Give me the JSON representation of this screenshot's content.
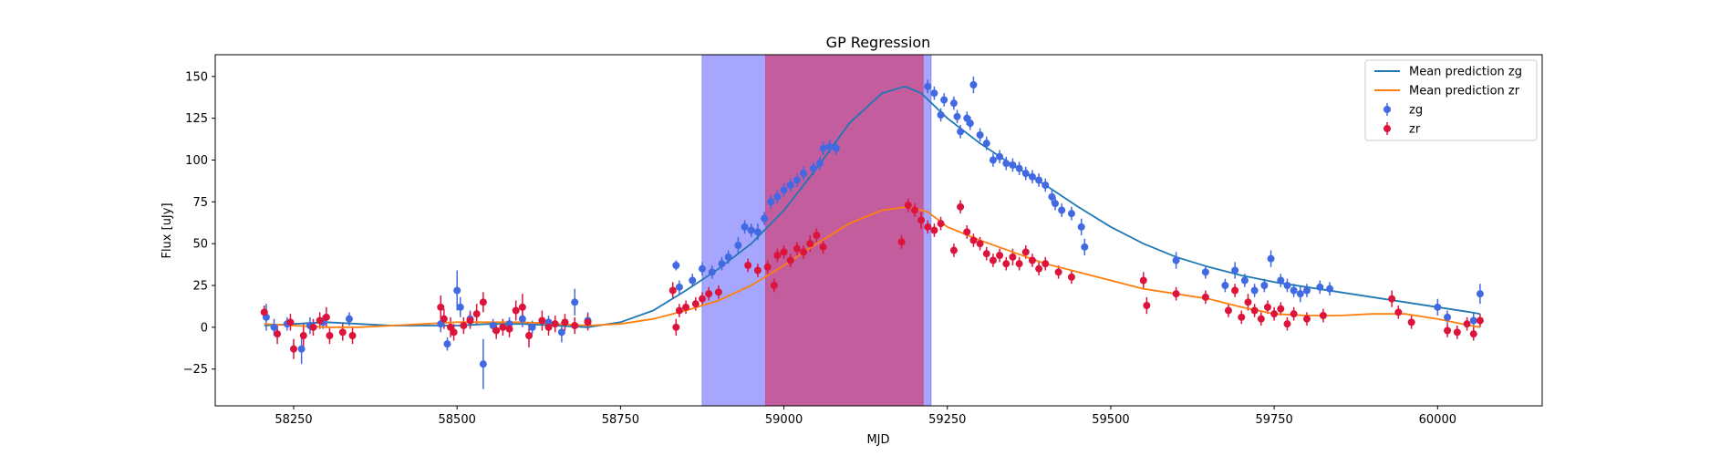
{
  "chart_data": {
    "type": "scatter",
    "title": "GP Regression",
    "xlabel": "MJD",
    "ylabel": "Flux [uJy]",
    "xlim": [
      58130,
      60160
    ],
    "ylim": [
      -47,
      163
    ],
    "xticks": [
      58250,
      58500,
      58750,
      59000,
      59250,
      59500,
      59750,
      60000
    ],
    "yticks": [
      -25,
      0,
      25,
      50,
      75,
      100,
      125,
      150
    ],
    "grid": false,
    "legend_position": "top-right",
    "shaded_regions": [
      {
        "x0": 58875,
        "x1": 59225,
        "color": "#8080ff",
        "opacity": 0.7
      },
      {
        "x0": 58972,
        "x1": 59213,
        "color": "#c8508c",
        "opacity": 0.85
      }
    ],
    "lines": [
      {
        "name": "Mean prediction zg",
        "color": "#1f77b4",
        "points": [
          [
            58205,
            1
          ],
          [
            58250,
            2
          ],
          [
            58300,
            3
          ],
          [
            58350,
            2
          ],
          [
            58400,
            1
          ],
          [
            58450,
            1
          ],
          [
            58500,
            1
          ],
          [
            58550,
            2
          ],
          [
            58600,
            2
          ],
          [
            58650,
            1
          ],
          [
            58700,
            0
          ],
          [
            58750,
            3
          ],
          [
            58800,
            10
          ],
          [
            58850,
            22
          ],
          [
            58900,
            35
          ],
          [
            58950,
            50
          ],
          [
            59000,
            70
          ],
          [
            59050,
            95
          ],
          [
            59100,
            122
          ],
          [
            59150,
            140
          ],
          [
            59185,
            144
          ],
          [
            59210,
            140
          ],
          [
            59250,
            125
          ],
          [
            59300,
            110
          ],
          [
            59350,
            97
          ],
          [
            59400,
            85
          ],
          [
            59450,
            72
          ],
          [
            59500,
            60
          ],
          [
            59550,
            50
          ],
          [
            59600,
            42
          ],
          [
            59650,
            36
          ],
          [
            59700,
            31
          ],
          [
            59750,
            27
          ],
          [
            59800,
            24
          ],
          [
            59850,
            21
          ],
          [
            59900,
            18
          ],
          [
            59950,
            15
          ],
          [
            60000,
            12
          ],
          [
            60050,
            9
          ],
          [
            60065,
            8
          ]
        ]
      },
      {
        "name": "Mean prediction zr",
        "color": "#ff7f0e",
        "points": [
          [
            58205,
            2
          ],
          [
            58250,
            1
          ],
          [
            58300,
            0
          ],
          [
            58350,
            0
          ],
          [
            58400,
            1
          ],
          [
            58450,
            2
          ],
          [
            58500,
            3
          ],
          [
            58550,
            3
          ],
          [
            58600,
            3
          ],
          [
            58650,
            2
          ],
          [
            58700,
            1
          ],
          [
            58750,
            2
          ],
          [
            58800,
            5
          ],
          [
            58850,
            10
          ],
          [
            58900,
            16
          ],
          [
            58950,
            25
          ],
          [
            59000,
            37
          ],
          [
            59050,
            50
          ],
          [
            59100,
            62
          ],
          [
            59150,
            70
          ],
          [
            59190,
            72
          ],
          [
            59220,
            69
          ],
          [
            59250,
            60
          ],
          [
            59300,
            52
          ],
          [
            59350,
            45
          ],
          [
            59400,
            38
          ],
          [
            59450,
            33
          ],
          [
            59500,
            28
          ],
          [
            59550,
            23
          ],
          [
            59600,
            20
          ],
          [
            59650,
            17
          ],
          [
            59700,
            12
          ],
          [
            59750,
            8
          ],
          [
            59800,
            7
          ],
          [
            59850,
            7
          ],
          [
            59900,
            8
          ],
          [
            59950,
            8
          ],
          [
            60000,
            5
          ],
          [
            60050,
            1
          ],
          [
            60065,
            0
          ]
        ]
      }
    ],
    "series": [
      {
        "name": "zg",
        "color": "#4169e1",
        "points": [
          [
            58208,
            6,
            8
          ],
          [
            58220,
            0,
            5
          ],
          [
            58240,
            2,
            4
          ],
          [
            58262,
            -13,
            9
          ],
          [
            58275,
            1,
            5
          ],
          [
            58295,
            3,
            4
          ],
          [
            58335,
            5,
            4
          ],
          [
            58475,
            2,
            5
          ],
          [
            58485,
            -10,
            4
          ],
          [
            58500,
            22,
            12
          ],
          [
            58505,
            12,
            6
          ],
          [
            58520,
            5,
            5
          ],
          [
            58540,
            -22,
            15
          ],
          [
            58555,
            1,
            4
          ],
          [
            58580,
            2,
            4
          ],
          [
            58600,
            5,
            5
          ],
          [
            58615,
            0,
            4
          ],
          [
            58640,
            3,
            4
          ],
          [
            58660,
            -3,
            6
          ],
          [
            58680,
            15,
            8
          ],
          [
            58700,
            4,
            5
          ],
          [
            58835,
            37,
            3
          ],
          [
            58840,
            24,
            4
          ],
          [
            58860,
            28,
            4
          ],
          [
            58875,
            35,
            4
          ],
          [
            58890,
            33,
            4
          ],
          [
            58905,
            38,
            4
          ],
          [
            58915,
            42,
            4
          ],
          [
            58930,
            49,
            5
          ],
          [
            58940,
            60,
            4
          ],
          [
            58950,
            58,
            4
          ],
          [
            58960,
            57,
            5
          ],
          [
            58970,
            65,
            4
          ],
          [
            58980,
            75,
            4
          ],
          [
            58990,
            78,
            4
          ],
          [
            59000,
            82,
            4
          ],
          [
            59010,
            85,
            4
          ],
          [
            59020,
            88,
            4
          ],
          [
            59030,
            92,
            4
          ],
          [
            59045,
            95,
            4
          ],
          [
            59055,
            98,
            4
          ],
          [
            59060,
            107,
            4
          ],
          [
            59070,
            108,
            4
          ],
          [
            59080,
            107,
            4
          ],
          [
            59220,
            144,
            4
          ],
          [
            59230,
            140,
            4
          ],
          [
            59240,
            127,
            4
          ],
          [
            59245,
            136,
            4
          ],
          [
            59260,
            134,
            4
          ],
          [
            59265,
            126,
            4
          ],
          [
            59270,
            117,
            4
          ],
          [
            59280,
            125,
            4
          ],
          [
            59285,
            122,
            4
          ],
          [
            59290,
            145,
            5
          ],
          [
            59300,
            115,
            4
          ],
          [
            59310,
            110,
            4
          ],
          [
            59320,
            100,
            4
          ],
          [
            59330,
            102,
            4
          ],
          [
            59340,
            98,
            4
          ],
          [
            59350,
            97,
            4
          ],
          [
            59360,
            95,
            4
          ],
          [
            59370,
            92,
            4
          ],
          [
            59380,
            90,
            4
          ],
          [
            59390,
            88,
            4
          ],
          [
            59400,
            85,
            4
          ],
          [
            59410,
            78,
            4
          ],
          [
            59415,
            74,
            4
          ],
          [
            59425,
            70,
            4
          ],
          [
            59440,
            68,
            4
          ],
          [
            59455,
            60,
            5
          ],
          [
            59460,
            48,
            5
          ],
          [
            59600,
            40,
            5
          ],
          [
            59645,
            33,
            4
          ],
          [
            59675,
            25,
            4
          ],
          [
            59690,
            34,
            5
          ],
          [
            59705,
            28,
            4
          ],
          [
            59720,
            22,
            4
          ],
          [
            59735,
            25,
            4
          ],
          [
            59745,
            41,
            5
          ],
          [
            59760,
            28,
            4
          ],
          [
            59770,
            25,
            4
          ],
          [
            59780,
            22,
            4
          ],
          [
            59790,
            20,
            5
          ],
          [
            59800,
            22,
            4
          ],
          [
            59820,
            24,
            4
          ],
          [
            59835,
            23,
            4
          ],
          [
            60000,
            12,
            5
          ],
          [
            60015,
            6,
            4
          ],
          [
            60055,
            4,
            5
          ],
          [
            60065,
            20,
            6
          ]
        ]
      },
      {
        "name": "zr",
        "color": "#dc143c",
        "points": [
          [
            58205,
            9,
            4
          ],
          [
            58225,
            -4,
            6
          ],
          [
            58245,
            3,
            5
          ],
          [
            58250,
            -13,
            6
          ],
          [
            58265,
            -5,
            7
          ],
          [
            58280,
            0,
            5
          ],
          [
            58290,
            4,
            5
          ],
          [
            58300,
            6,
            6
          ],
          [
            58305,
            -5,
            5
          ],
          [
            58325,
            -3,
            5
          ],
          [
            58340,
            -5,
            5
          ],
          [
            58475,
            12,
            7
          ],
          [
            58480,
            5,
            6
          ],
          [
            58490,
            0,
            6
          ],
          [
            58495,
            -3,
            5
          ],
          [
            58510,
            1,
            5
          ],
          [
            58520,
            4,
            5
          ],
          [
            58530,
            8,
            6
          ],
          [
            58540,
            15,
            6
          ],
          [
            58560,
            -2,
            5
          ],
          [
            58570,
            0,
            5
          ],
          [
            58580,
            -1,
            5
          ],
          [
            58590,
            10,
            6
          ],
          [
            58600,
            12,
            8
          ],
          [
            58610,
            -5,
            7
          ],
          [
            58630,
            4,
            6
          ],
          [
            58640,
            0,
            5
          ],
          [
            58650,
            2,
            5
          ],
          [
            58665,
            3,
            5
          ],
          [
            58680,
            1,
            5
          ],
          [
            58700,
            3,
            5
          ],
          [
            58830,
            22,
            5
          ],
          [
            58835,
            0,
            5
          ],
          [
            58840,
            10,
            4
          ],
          [
            58850,
            12,
            4
          ],
          [
            58865,
            14,
            4
          ],
          [
            58875,
            17,
            4
          ],
          [
            58885,
            20,
            4
          ],
          [
            58900,
            21,
            4
          ],
          [
            58945,
            37,
            4
          ],
          [
            58960,
            34,
            4
          ],
          [
            58975,
            36,
            4
          ],
          [
            58985,
            25,
            4
          ],
          [
            58990,
            43,
            4
          ],
          [
            59000,
            45,
            4
          ],
          [
            59010,
            40,
            4
          ],
          [
            59020,
            47,
            4
          ],
          [
            59030,
            45,
            4
          ],
          [
            59040,
            50,
            5
          ],
          [
            59050,
            55,
            4
          ],
          [
            59060,
            48,
            4
          ],
          [
            59180,
            51,
            4
          ],
          [
            59190,
            73,
            4
          ],
          [
            59200,
            70,
            4
          ],
          [
            59210,
            64,
            5
          ],
          [
            59220,
            60,
            4
          ],
          [
            59230,
            58,
            4
          ],
          [
            59240,
            62,
            4
          ],
          [
            59260,
            46,
            4
          ],
          [
            59270,
            72,
            4
          ],
          [
            59280,
            57,
            4
          ],
          [
            59290,
            52,
            4
          ],
          [
            59300,
            50,
            4
          ],
          [
            59310,
            44,
            4
          ],
          [
            59320,
            40,
            4
          ],
          [
            59330,
            43,
            4
          ],
          [
            59340,
            38,
            4
          ],
          [
            59350,
            42,
            5
          ],
          [
            59360,
            38,
            4
          ],
          [
            59370,
            45,
            4
          ],
          [
            59380,
            40,
            4
          ],
          [
            59390,
            35,
            4
          ],
          [
            59400,
            38,
            4
          ],
          [
            59420,
            33,
            4
          ],
          [
            59440,
            30,
            4
          ],
          [
            59550,
            28,
            5
          ],
          [
            59555,
            13,
            5
          ],
          [
            59600,
            20,
            4
          ],
          [
            59645,
            18,
            4
          ],
          [
            59680,
            10,
            4
          ],
          [
            59690,
            22,
            4
          ],
          [
            59700,
            6,
            4
          ],
          [
            59710,
            15,
            5
          ],
          [
            59720,
            10,
            4
          ],
          [
            59730,
            5,
            4
          ],
          [
            59740,
            12,
            4
          ],
          [
            59750,
            8,
            4
          ],
          [
            59760,
            11,
            4
          ],
          [
            59770,
            2,
            4
          ],
          [
            59780,
            8,
            4
          ],
          [
            59800,
            5,
            4
          ],
          [
            59825,
            7,
            4
          ],
          [
            59930,
            17,
            5
          ],
          [
            59940,
            9,
            4
          ],
          [
            59960,
            3,
            4
          ],
          [
            60015,
            -2,
            4
          ],
          [
            60030,
            -3,
            4
          ],
          [
            60045,
            2,
            4
          ],
          [
            60055,
            -4,
            4
          ],
          [
            60065,
            4,
            4
          ]
        ]
      }
    ]
  }
}
